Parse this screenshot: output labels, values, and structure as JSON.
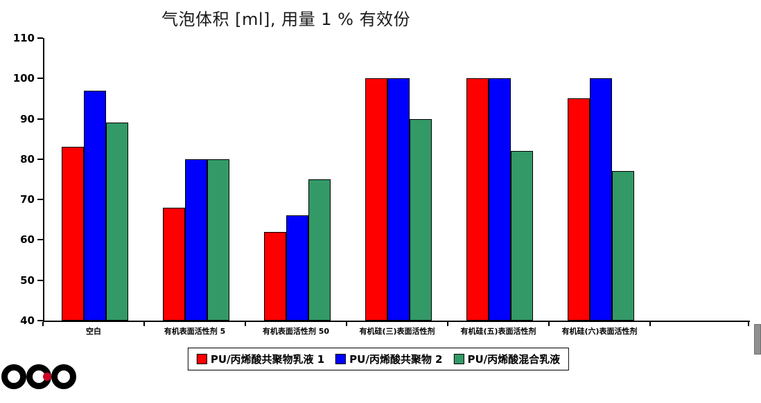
{
  "chart_data": {
    "type": "bar",
    "title": "气泡体积 [ml], 用量 1 % 有效份",
    "categories": [
      "空白",
      "有机表面活性剂 5",
      "有机表面活性剂 50",
      "有机硅(三)表面活性剂",
      "有机硅(五)表面活性剂",
      "有机硅(六)表面活性剂"
    ],
    "series": [
      {
        "name": "PU/丙烯酸共聚物乳液 1",
        "color": "#ff0000",
        "values": [
          83,
          68,
          62,
          100,
          100,
          95
        ]
      },
      {
        "name": "PU/丙烯酸共聚物 2",
        "color": "#0000ff",
        "values": [
          97,
          80,
          66,
          100,
          100,
          100
        ]
      },
      {
        "name": "PU/丙烯酸混合乳液",
        "color": "#339966",
        "values": [
          89,
          80,
          75,
          90,
          82,
          77
        ]
      }
    ],
    "ylim": [
      40,
      110
    ],
    "yticks": [
      40,
      50,
      60,
      70,
      80,
      90,
      100,
      110
    ],
    "xlabel": "",
    "ylabel": "",
    "grid": false,
    "legend_position": "bottom"
  }
}
